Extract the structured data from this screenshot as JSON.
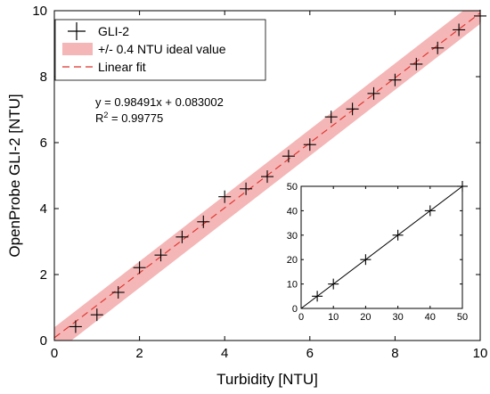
{
  "chart_data": [
    {
      "type": "scatter",
      "xlabel": "Turbidity [NTU]",
      "ylabel": "OpenProbe GLI-2 [NTU]",
      "xlim": [
        0,
        10
      ],
      "ylim": [
        0,
        10
      ],
      "xticks": [
        0,
        2,
        4,
        6,
        8,
        10
      ],
      "yticks": [
        0,
        2,
        4,
        6,
        8,
        10
      ],
      "grid": false,
      "legend_position": "top-left",
      "series": [
        {
          "name": "GLI-2",
          "kind": "scatter",
          "marker": "+",
          "color": "#000000",
          "x": [
            0.5,
            1.0,
            1.5,
            2.0,
            2.5,
            3.0,
            3.5,
            4.0,
            4.5,
            5.0,
            5.5,
            6.0,
            6.5,
            7.0,
            7.5,
            8.0,
            8.5,
            9.0,
            9.5,
            10.0
          ],
          "y": [
            0.42,
            0.78,
            1.46,
            2.21,
            2.59,
            3.14,
            3.6,
            4.36,
            4.6,
            4.97,
            5.59,
            5.94,
            6.78,
            7.02,
            7.49,
            7.9,
            8.38,
            8.87,
            9.42,
            9.84
          ]
        },
        {
          "name": "+/- 0.4 NTU ideal value",
          "kind": "band",
          "color": "#f4b6b6",
          "center_line": "y = x",
          "half_width": 0.4
        },
        {
          "name": "Linear fit",
          "kind": "line",
          "style": "dashed",
          "color": "#e0302a",
          "slope": 0.98491,
          "intercept": 0.083002
        }
      ],
      "annotations": [
        "y = 0.98491x + 0.083002",
        "R",
        "2",
        " = 0.99775"
      ]
    },
    {
      "type": "scatter",
      "subplot": "inset",
      "xlim": [
        0,
        50
      ],
      "ylim": [
        0,
        50
      ],
      "xticks": [
        0,
        10,
        20,
        30,
        40,
        50
      ],
      "yticks": [
        0,
        10,
        20,
        30,
        40,
        50
      ],
      "series": [
        {
          "kind": "scatter",
          "marker": "+",
          "color": "#000000",
          "x": [
            5,
            10,
            20,
            30,
            40,
            50
          ],
          "y": [
            5,
            10,
            20,
            30,
            40,
            50
          ]
        },
        {
          "kind": "line",
          "style": "solid",
          "color": "#000000",
          "x": [
            0,
            50
          ],
          "y": [
            0,
            50
          ]
        }
      ]
    }
  ]
}
